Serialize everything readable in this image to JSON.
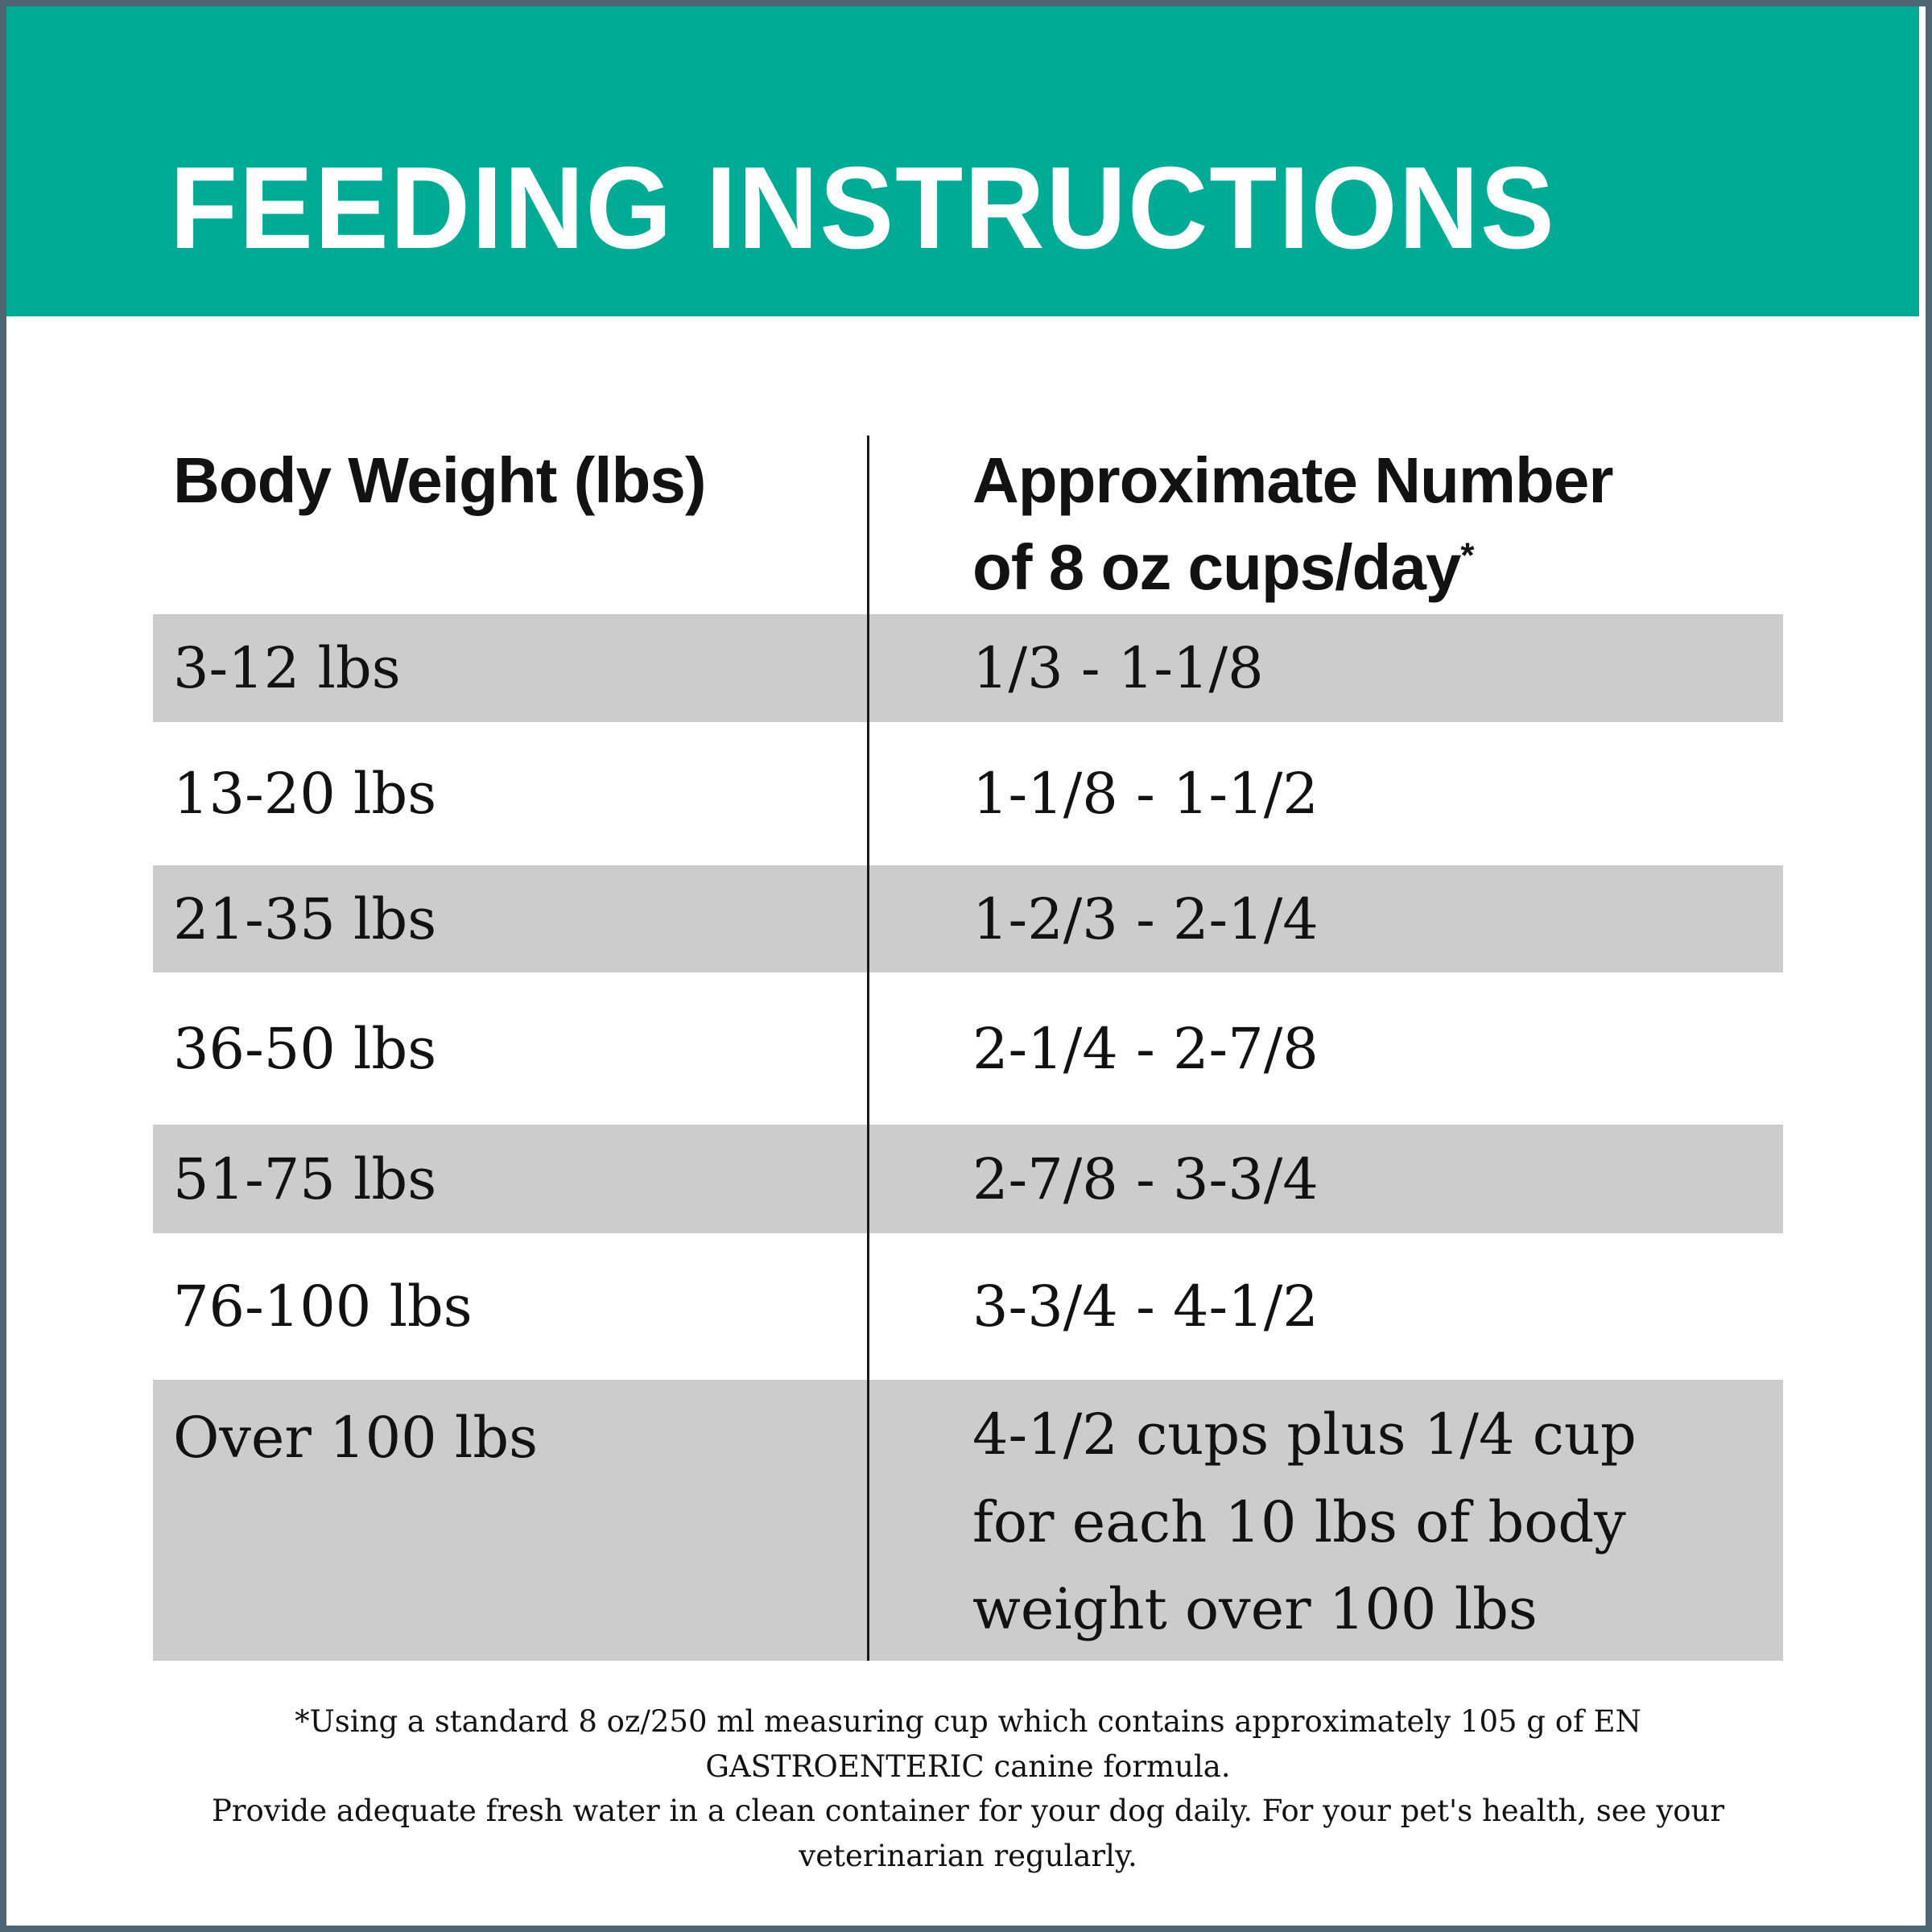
{
  "colors": {
    "banner_background": "#00ab96",
    "banner_title_text": "#ffffff",
    "shaded_row_background": "#cccccc",
    "frame_border": "#4d6874",
    "body_text": "#121212"
  },
  "banner": {
    "title": "FEEDING INSTRUCTIONS"
  },
  "table": {
    "header": {
      "col1": "Body Weight (lbs)",
      "col2_line1": "Approximate Number",
      "col2_line2": "of 8 oz cups/day",
      "col2_footnote_marker": "*"
    },
    "rows": [
      {
        "weight": "3-12 lbs",
        "cups": "1/3 - 1-1/8"
      },
      {
        "weight": "13-20 lbs",
        "cups": "1-1/8 - 1-1/2"
      },
      {
        "weight": "21-35 lbs",
        "cups": "1-2/3 - 2-1/4"
      },
      {
        "weight": "36-50 lbs",
        "cups": "2-1/4 - 2-7/8"
      },
      {
        "weight": "51-75 lbs",
        "cups": "2-7/8 - 3-3/4"
      },
      {
        "weight": "76-100 lbs",
        "cups": "3-3/4 - 4-1/2"
      },
      {
        "weight": "Over 100 lbs",
        "cups": "4-1/2 cups plus 1/4 cup for each 10 lbs of body weight over 100 lbs"
      }
    ]
  },
  "footnote": {
    "line1": "*Using a standard 8 oz/250 ml measuring cup which contains approximately 105 g of EN GASTROENTERIC canine formula.",
    "line2": "Provide adequate fresh water in a clean container for your dog daily. For your pet's health, see your veterinarian regularly."
  }
}
